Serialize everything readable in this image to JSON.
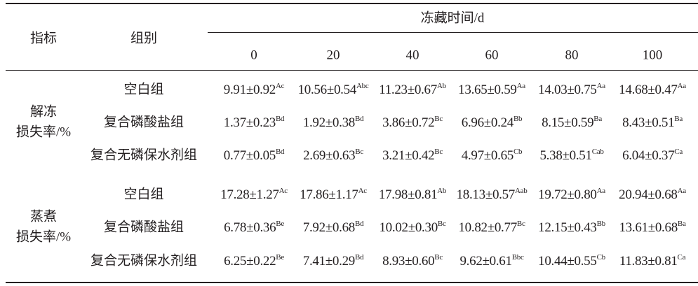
{
  "header": {
    "indicator": "指标",
    "group": "组别",
    "time": "冻藏时间/d",
    "days": [
      "0",
      "20",
      "40",
      "60",
      "80",
      "100"
    ]
  },
  "sections": [
    {
      "indicator": [
        "解冻",
        "损失率/%"
      ],
      "rows": [
        {
          "group": "空白组",
          "cells": [
            {
              "value": "9.91±0.92",
              "sup": "Ac"
            },
            {
              "value": "10.56±0.54",
              "sup": "Abc"
            },
            {
              "value": "11.23±0.67",
              "sup": "Ab"
            },
            {
              "value": "13.65±0.59",
              "sup": "Aa"
            },
            {
              "value": "14.03±0.75",
              "sup": "Aa"
            },
            {
              "value": "14.68±0.47",
              "sup": "Aa"
            }
          ]
        },
        {
          "group": "复合磷酸盐组",
          "cells": [
            {
              "value": "1.37±0.23",
              "sup": "Bd"
            },
            {
              "value": "1.92±0.38",
              "sup": "Bd"
            },
            {
              "value": "3.86±0.72",
              "sup": "Bc"
            },
            {
              "value": "6.96±0.24",
              "sup": "Bb"
            },
            {
              "value": "8.15±0.59",
              "sup": "Ba"
            },
            {
              "value": "8.43±0.51",
              "sup": "Ba"
            }
          ]
        },
        {
          "group": "复合无磷保水剂组",
          "cells": [
            {
              "value": "0.77±0.05",
              "sup": "Bd"
            },
            {
              "value": "2.69±0.63",
              "sup": "Bc"
            },
            {
              "value": "3.21±0.42",
              "sup": "Bc"
            },
            {
              "value": "4.97±0.65",
              "sup": "Cb"
            },
            {
              "value": "5.38±0.51",
              "sup": "Cab"
            },
            {
              "value": "6.04±0.37",
              "sup": "Ca"
            }
          ]
        }
      ]
    },
    {
      "indicator": [
        "蒸煮",
        "损失率/%"
      ],
      "rows": [
        {
          "group": "空白组",
          "cells": [
            {
              "value": "17.28±1.27",
              "sup": "Ac"
            },
            {
              "value": "17.86±1.17",
              "sup": "Ac"
            },
            {
              "value": "17.98±0.81",
              "sup": "Ab"
            },
            {
              "value": "18.13±0.57",
              "sup": "Aab"
            },
            {
              "value": "19.72±0.80",
              "sup": "Aa"
            },
            {
              "value": "20.94±0.68",
              "sup": "Aa"
            }
          ]
        },
        {
          "group": "复合磷酸盐组",
          "cells": [
            {
              "value": "6.78±0.36",
              "sup": "Be"
            },
            {
              "value": "7.92±0.68",
              "sup": "Bd"
            },
            {
              "value": "10.02±0.30",
              "sup": "Bc"
            },
            {
              "value": "10.82±0.77",
              "sup": "Bc"
            },
            {
              "value": "12.15±0.43",
              "sup": "Bb"
            },
            {
              "value": "13.61±0.68",
              "sup": "Ba"
            }
          ]
        },
        {
          "group": "复合无磷保水剂组",
          "cells": [
            {
              "value": "6.25±0.22",
              "sup": "Be"
            },
            {
              "value": "7.41±0.29",
              "sup": "Bd"
            },
            {
              "value": "8.93±0.60",
              "sup": "Bc"
            },
            {
              "value": "9.62±0.61",
              "sup": "Bbc"
            },
            {
              "value": "10.44±0.55",
              "sup": "Cb"
            },
            {
              "value": "11.83±0.81",
              "sup": "Ca"
            }
          ]
        }
      ]
    }
  ]
}
